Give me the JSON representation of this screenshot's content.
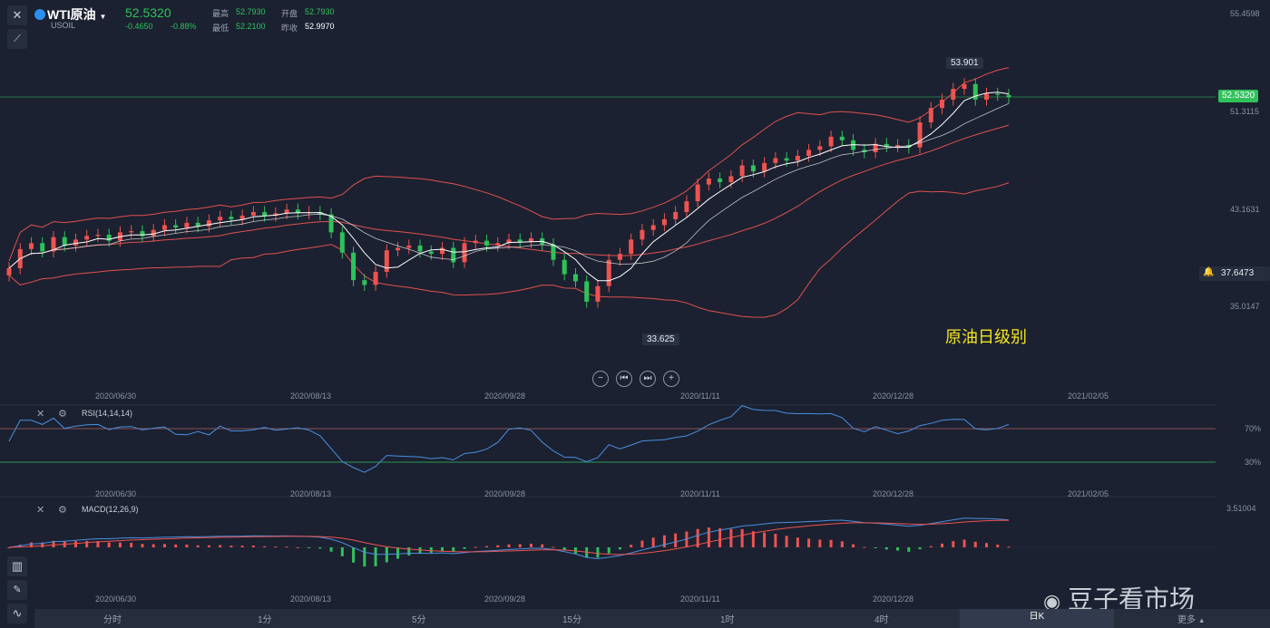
{
  "header": {
    "symbol": "WTI原油",
    "code": "USOIL",
    "price": "52.5320",
    "change": "-0.4650",
    "change_pct": "-0.88%",
    "high_label": "最高",
    "high": "52.7930",
    "open_label": "开盘",
    "open": "52.7930",
    "low_label": "最低",
    "low": "52.2100",
    "prev_label": "昨收",
    "prev": "52.9970"
  },
  "price_axis": {
    "top": "55.4598",
    "current": "52.5320",
    "l1": "51.3115",
    "l2": "43.1631",
    "marker": "37.6473",
    "l3": "35.0147"
  },
  "annotations": {
    "high_tag": "53.901",
    "low_tag": "33.625",
    "note": "原油日级别"
  },
  "dates": [
    "2020/06/30",
    "2020/08/13",
    "2020/09/28",
    "2020/11/11",
    "2020/12/28",
    "2021/02/05"
  ],
  "rsi": {
    "label": "RSI(14,14,14)",
    "level_high": "70%",
    "level_low": "30%"
  },
  "macd": {
    "label": "MACD(12,26,9)",
    "axis_top": "3.51004"
  },
  "timeframes": [
    "分时",
    "1分",
    "5分",
    "15分",
    "1时",
    "4时",
    "日K",
    "更多"
  ],
  "active_timeframe": "日K",
  "watermark": "豆子看市场",
  "colors": {
    "up": "#ef5350",
    "down": "#2fc25b",
    "band": "#e05050",
    "rsi_line": "#4a8fe0",
    "macd_dif": "#4a8fe0",
    "macd_dea": "#ef5350"
  },
  "chart_data": {
    "type": "candlestick",
    "close": [
      38.2,
      39.8,
      40.3,
      39.6,
      40.8,
      40.1,
      40.6,
      40.9,
      41.0,
      40.5,
      41.2,
      41.3,
      40.9,
      41.4,
      41.8,
      41.6,
      42.0,
      41.7,
      42.2,
      42.5,
      42.3,
      42.6,
      42.9,
      42.6,
      42.8,
      43.1,
      42.8,
      42.9,
      42.7,
      41.2,
      39.5,
      37.2,
      36.8,
      37.9,
      39.7,
      39.9,
      40.1,
      39.6,
      39.4,
      39.9,
      38.7,
      40.3,
      40.5,
      40.1,
      40.3,
      40.6,
      40.4,
      40.7,
      40.2,
      38.9,
      37.7,
      37.1,
      35.4,
      36.7,
      38.9,
      39.4,
      40.6,
      41.4,
      41.8,
      42.3,
      42.9,
      43.8,
      45.2,
      45.7,
      45.4,
      45.9,
      46.8,
      46.3,
      47.0,
      47.4,
      47.2,
      47.6,
      48.1,
      48.4,
      49.2,
      48.9,
      48.1,
      47.9,
      48.6,
      48.4,
      48.5,
      48.3,
      50.4,
      51.6,
      52.3,
      53.2,
      53.6,
      52.3,
      52.8,
      52.7,
      52.5
    ]
  }
}
